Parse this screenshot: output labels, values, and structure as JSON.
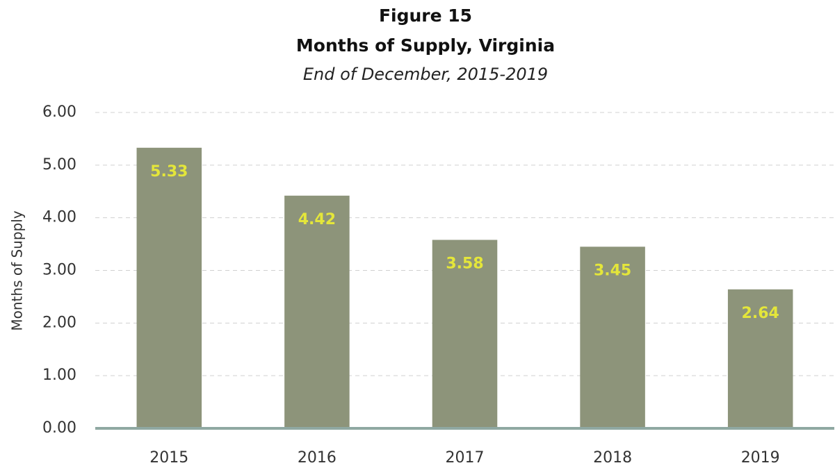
{
  "chart_data": {
    "type": "bar",
    "title": [
      "Figure 15",
      "Months of Supply, Virginia"
    ],
    "subtitle": "End of December, 2015-2019",
    "y_label": "Months of Supply",
    "categories": [
      "2015",
      "2016",
      "2017",
      "2018",
      "2019"
    ],
    "values": [
      5.33,
      4.42,
      3.58,
      3.45,
      2.64
    ],
    "color": "#8d947a",
    "label_color": "#e4e63a",
    "ylim": [
      0,
      6
    ],
    "yticks": [
      {
        "value": 0,
        "label": "0.00"
      },
      {
        "value": 1,
        "label": "1.00"
      },
      {
        "value": 2,
        "label": "2.00"
      },
      {
        "value": 3,
        "label": "3.00"
      },
      {
        "value": 4,
        "label": "4.00"
      },
      {
        "value": 5,
        "label": "5.00"
      },
      {
        "value": 6,
        "label": "6.00"
      }
    ],
    "grid": true
  }
}
